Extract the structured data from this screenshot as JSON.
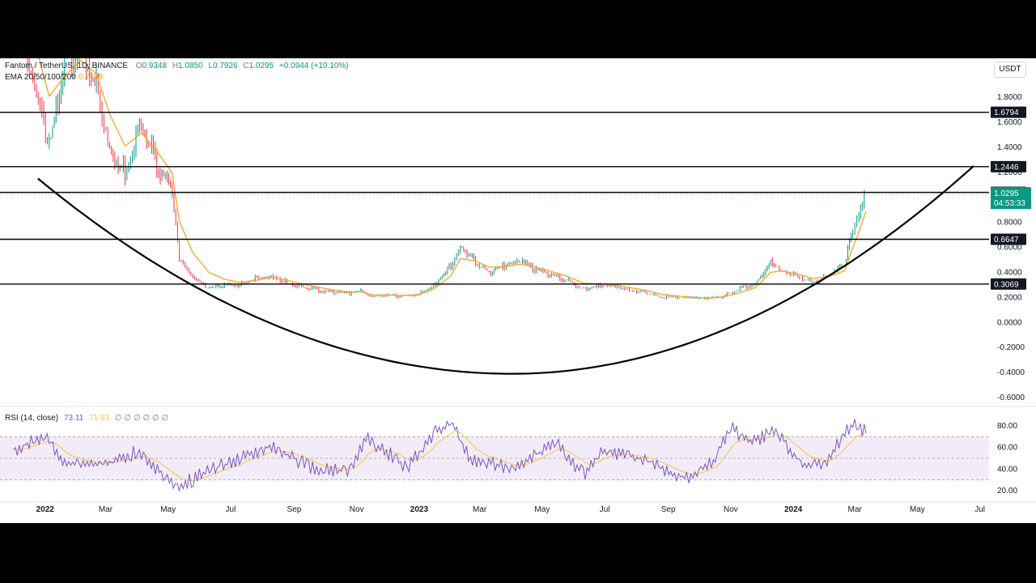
{
  "header": {
    "symbol": "Fantom / TetherUS, 1D, BINANCE",
    "ohlc": [
      {
        "label": "O",
        "value": "0.9348"
      },
      {
        "label": "H",
        "value": "1.0850"
      },
      {
        "label": "L",
        "value": "0.7926"
      },
      {
        "label": "C",
        "value": "1.0295"
      }
    ],
    "change": "+0.0944 (+10.10%)",
    "indicator_name": "EMA 20/50/100/200",
    "indicator_value": "0.7739",
    "currency": "USDT"
  },
  "rsi_header": {
    "name": "RSI (14, close)",
    "value1": "73.11",
    "value2": "71.93",
    "placeholders": [
      "∅",
      "∅",
      "∅",
      "∅",
      "∅",
      "∅"
    ]
  },
  "colors": {
    "up": "#089981",
    "down": "#f23645",
    "ema": "#f5a623",
    "rsi": "#7e57c2",
    "rsi_ma": "#f5c542",
    "rsi_band": "#ede7f6",
    "level_line": "#000000",
    "price_badge": "#089981"
  },
  "chart_data": [
    {
      "type": "line",
      "name": "price",
      "x": [
        "2021-12-01",
        "2021-12-20",
        "2022-01-05",
        "2022-01-20",
        "2022-02-05",
        "2022-02-20",
        "2022-03-05",
        "2022-03-20",
        "2022-04-05",
        "2022-04-20",
        "2022-05-05",
        "2022-05-12",
        "2022-05-25",
        "2022-06-10",
        "2022-06-25",
        "2022-07-10",
        "2022-07-25",
        "2022-08-10",
        "2022-08-25",
        "2022-09-10",
        "2022-09-25",
        "2022-10-10",
        "2022-10-25",
        "2022-11-05",
        "2022-11-15",
        "2022-12-01",
        "2022-12-15",
        "2023-01-01",
        "2023-01-15",
        "2023-02-01",
        "2023-02-10",
        "2023-02-25",
        "2023-03-10",
        "2023-03-25",
        "2023-04-10",
        "2023-04-25",
        "2023-05-10",
        "2023-05-25",
        "2023-06-10",
        "2023-06-25",
        "2023-07-10",
        "2023-07-25",
        "2023-08-10",
        "2023-08-25",
        "2023-09-10",
        "2023-09-25",
        "2023-10-10",
        "2023-10-25",
        "2023-11-10",
        "2023-11-25",
        "2023-12-10",
        "2023-12-20",
        "2024-01-05",
        "2024-01-20",
        "2024-02-05",
        "2024-02-20",
        "2024-02-28",
        "2024-03-05",
        "2024-03-12"
      ],
      "y": [
        2.8,
        1.9,
        1.4,
        2.1,
        2.2,
        1.9,
        1.4,
        1.2,
        1.6,
        1.25,
        1.05,
        0.5,
        0.35,
        0.27,
        0.3,
        0.3,
        0.35,
        0.38,
        0.32,
        0.28,
        0.26,
        0.24,
        0.23,
        0.25,
        0.2,
        0.22,
        0.21,
        0.23,
        0.3,
        0.46,
        0.62,
        0.48,
        0.4,
        0.45,
        0.48,
        0.42,
        0.38,
        0.34,
        0.27,
        0.3,
        0.3,
        0.26,
        0.24,
        0.2,
        0.2,
        0.19,
        0.19,
        0.21,
        0.27,
        0.31,
        0.5,
        0.42,
        0.37,
        0.32,
        0.38,
        0.45,
        0.75,
        0.82,
        1.03
      ]
    },
    {
      "type": "line",
      "name": "RSI",
      "x": [
        "2021-12-01",
        "2022-01-01",
        "2022-01-20",
        "2022-03-05",
        "2022-04-01",
        "2022-05-10",
        "2022-06-20",
        "2022-08-10",
        "2022-09-15",
        "2022-10-25",
        "2022-11-10",
        "2022-12-20",
        "2023-01-15",
        "2023-02-01",
        "2023-02-20",
        "2023-04-01",
        "2023-05-15",
        "2023-06-10",
        "2023-07-01",
        "2023-08-15",
        "2023-09-15",
        "2023-10-15",
        "2023-11-01",
        "2023-11-20",
        "2023-12-15",
        "2024-01-10",
        "2024-02-01",
        "2024-03-01",
        "2024-03-12"
      ],
      "y": [
        58,
        70,
        45,
        45,
        57,
        24,
        42,
        63,
        42,
        38,
        70,
        42,
        72,
        84,
        50,
        40,
        65,
        35,
        58,
        48,
        30,
        47,
        78,
        65,
        76,
        42,
        46,
        85,
        73.11
      ],
      "ylim": [
        20,
        80
      ],
      "yticks": [
        "80.00",
        "60.00",
        "40.00",
        "20.00"
      ]
    }
  ],
  "price_axis": {
    "ticks": [
      "1.8000",
      "1.6000",
      "1.4000",
      "1.2000",
      "0.8000",
      "0.6000",
      "0.4000",
      "0.2000",
      "0.0000",
      "-0.2000",
      "-0.4000",
      "-0.6000"
    ],
    "tick_values": [
      1.8,
      1.6,
      1.4,
      1.2,
      0.8,
      0.6,
      0.4,
      0.2,
      0.0,
      -0.2,
      -0.4,
      -0.6
    ],
    "ylim": [
      -0.65,
      2.05
    ]
  },
  "levels": [
    {
      "label": "1.6794",
      "value": 1.6794
    },
    {
      "label": "1.2446",
      "value": 1.2446
    },
    {
      "label": "1.0395",
      "value": 1.0395
    },
    {
      "label": "0.6647",
      "value": 0.6647
    },
    {
      "label": "0.3069",
      "value": 0.3069
    }
  ],
  "current_price": {
    "label": "1.0295",
    "countdown": "04:53:33",
    "value": 1.0295
  },
  "time_axis": {
    "labels": [
      {
        "text": "2022",
        "date": "2022-01-01",
        "bold": true
      },
      {
        "text": "Mar",
        "date": "2022-03-01"
      },
      {
        "text": "May",
        "date": "2022-05-01"
      },
      {
        "text": "Jul",
        "date": "2022-07-01"
      },
      {
        "text": "Sep",
        "date": "2022-09-01"
      },
      {
        "text": "Nov",
        "date": "2022-11-01"
      },
      {
        "text": "2023",
        "date": "2023-01-01",
        "bold": true
      },
      {
        "text": "Mar",
        "date": "2023-03-01"
      },
      {
        "text": "May",
        "date": "2023-05-01"
      },
      {
        "text": "Jul",
        "date": "2023-07-01"
      },
      {
        "text": "Sep",
        "date": "2023-09-01"
      },
      {
        "text": "Nov",
        "date": "2023-11-01"
      },
      {
        "text": "2024",
        "date": "2024-01-01",
        "bold": true
      },
      {
        "text": "Mar",
        "date": "2024-03-01"
      },
      {
        "text": "May",
        "date": "2024-05-01"
      },
      {
        "text": "Jul",
        "date": "2024-07-01"
      }
    ]
  },
  "cup_curve": {
    "start": {
      "date": "2021-12-25",
      "value": 1.15
    },
    "bottom": {
      "date": "2023-04-01",
      "value": -0.41
    },
    "end": {
      "date": "2024-06-25",
      "value": 1.25
    }
  }
}
